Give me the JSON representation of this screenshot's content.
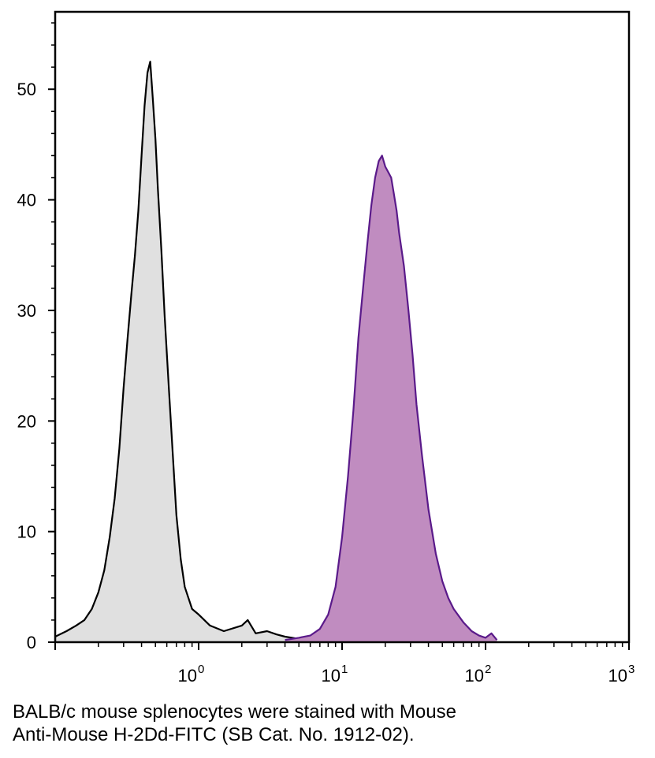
{
  "caption": {
    "line1": "BALB/c mouse splenocytes were stained with Mouse",
    "line2": "Anti-Mouse H-2Dd-FITC (SB Cat. No. 1912-02)."
  },
  "chart_data": {
    "type": "area",
    "title": "",
    "xlabel": "",
    "ylabel": "",
    "x_scale": "log",
    "xlim": [
      0.1,
      1000
    ],
    "ylim": [
      0,
      57
    ],
    "grid": false,
    "y_ticks": [
      0,
      10,
      20,
      30,
      40,
      50
    ],
    "y_tick_labels": [
      "0",
      "10",
      "20",
      "30",
      "40",
      "50"
    ],
    "x_ticks": [
      1,
      10,
      100,
      1000
    ],
    "x_tick_labels": [
      {
        "base": "10",
        "exp": "0"
      },
      {
        "base": "10",
        "exp": "1"
      },
      {
        "base": "10",
        "exp": "2"
      },
      {
        "base": "10",
        "exp": "3"
      }
    ],
    "series": [
      {
        "fill": "#e0e0e0",
        "stroke": "#000000",
        "x": [
          0.1,
          0.12,
          0.14,
          0.16,
          0.18,
          0.2,
          0.22,
          0.24,
          0.26,
          0.28,
          0.3,
          0.32,
          0.34,
          0.36,
          0.38,
          0.4,
          0.42,
          0.44,
          0.46,
          0.48,
          0.5,
          0.52,
          0.55,
          0.58,
          0.62,
          0.66,
          0.7,
          0.75,
          0.8,
          0.9,
          1.0,
          1.2,
          1.5,
          2.0,
          2.2,
          2.5,
          3.0,
          3.5,
          4.0,
          5.0
        ],
        "y": [
          0.5,
          1.0,
          1.5,
          2.0,
          3.0,
          4.5,
          6.5,
          9.5,
          13.0,
          17.5,
          23.0,
          27.5,
          31.5,
          35.0,
          39.0,
          44.0,
          48.5,
          51.5,
          52.5,
          49.0,
          45.5,
          41.0,
          35.5,
          29.5,
          23.0,
          17.0,
          11.5,
          7.5,
          5.0,
          3.0,
          2.5,
          1.5,
          1.0,
          1.5,
          2.0,
          0.8,
          1.0,
          0.7,
          0.5,
          0.3
        ]
      },
      {
        "fill": "#c08cc0",
        "stroke": "#5a1a8a",
        "x": [
          4.0,
          5.0,
          6.0,
          7.0,
          8.0,
          9.0,
          10.0,
          11.0,
          12.0,
          13.0,
          14.0,
          15.0,
          16.0,
          17.0,
          18.0,
          19.0,
          20.0,
          21.0,
          22.0,
          23.0,
          24.0,
          25.0,
          27.0,
          29.0,
          31.0,
          33.0,
          36.0,
          40.0,
          45.0,
          50.0,
          55.0,
          60.0,
          70.0,
          80.0,
          90.0,
          100.0,
          110.0,
          120.0
        ],
        "y": [
          0.2,
          0.4,
          0.6,
          1.2,
          2.5,
          5.0,
          9.5,
          15.0,
          21.0,
          27.5,
          32.0,
          36.0,
          39.5,
          42.0,
          43.5,
          44.0,
          43.0,
          42.5,
          42.0,
          40.5,
          39.0,
          37.0,
          34.0,
          30.0,
          26.0,
          21.5,
          17.0,
          12.0,
          8.0,
          5.5,
          4.0,
          3.0,
          1.8,
          1.0,
          0.6,
          0.4,
          0.8,
          0.2
        ]
      }
    ]
  }
}
